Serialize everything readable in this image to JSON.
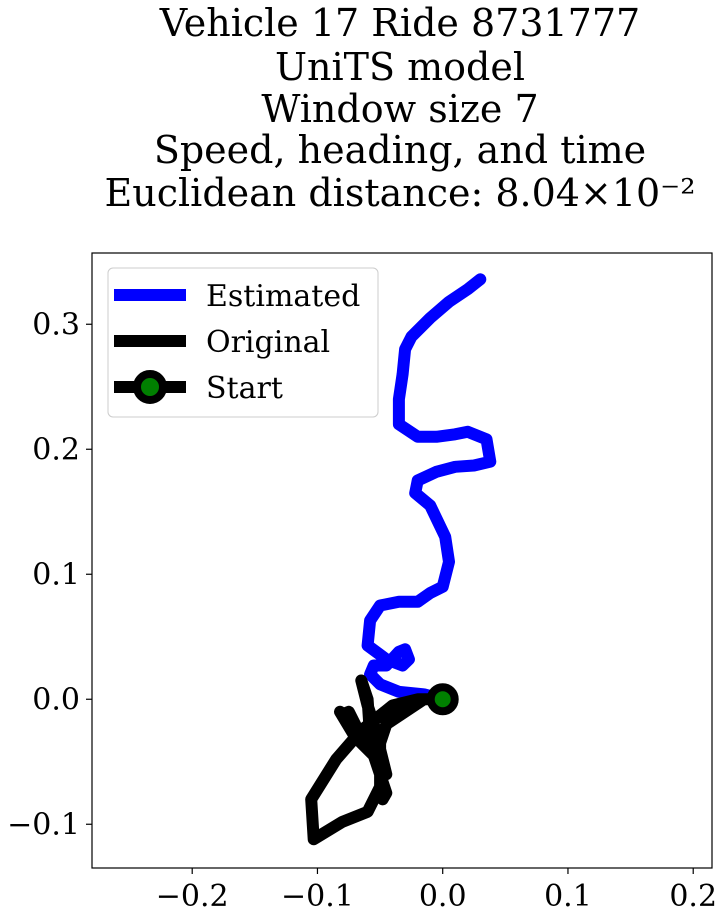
{
  "chart_data": {
    "type": "line",
    "title_lines": [
      "Vehicle 17 Ride 8731777",
      "UniTS model",
      "Window size 7",
      "Speed, heading, and time",
      "Euclidean distance: 8.04×10⁻²"
    ],
    "xlim": [
      -0.28,
      0.215
    ],
    "ylim": [
      -0.135,
      0.357
    ],
    "xticks": [
      -0.2,
      -0.1,
      0.0,
      0.1,
      0.2
    ],
    "xtick_labels": [
      "−0.2",
      "−0.1",
      "0.0",
      "0.1",
      "0.2"
    ],
    "yticks": [
      -0.1,
      0.0,
      0.1,
      0.2,
      0.3
    ],
    "ytick_labels": [
      "−0.1",
      "0.0",
      "0.1",
      "0.2",
      "0.3"
    ],
    "grid": false,
    "legend_position": "top-left",
    "legend": [
      "Estimated",
      "Original",
      "Start"
    ],
    "series": [
      {
        "name": "Estimated",
        "color": "#0000ff",
        "points": [
          [
            0.0,
            0.0
          ],
          [
            -0.015,
            0.004
          ],
          [
            -0.035,
            0.006
          ],
          [
            -0.05,
            0.012
          ],
          [
            -0.058,
            0.02
          ],
          [
            -0.055,
            0.027
          ],
          [
            -0.045,
            0.027
          ],
          [
            -0.035,
            0.038
          ],
          [
            -0.03,
            0.04
          ],
          [
            -0.027,
            0.032
          ],
          [
            -0.032,
            0.027
          ],
          [
            -0.045,
            0.032
          ],
          [
            -0.06,
            0.043
          ],
          [
            -0.058,
            0.063
          ],
          [
            -0.05,
            0.075
          ],
          [
            -0.035,
            0.078
          ],
          [
            -0.02,
            0.078
          ],
          [
            -0.01,
            0.085
          ],
          [
            0.0,
            0.09
          ],
          [
            0.005,
            0.11
          ],
          [
            0.002,
            0.13
          ],
          [
            -0.01,
            0.155
          ],
          [
            -0.022,
            0.165
          ],
          [
            -0.02,
            0.175
          ],
          [
            -0.005,
            0.182
          ],
          [
            0.01,
            0.186
          ],
          [
            0.025,
            0.187
          ],
          [
            0.038,
            0.19
          ],
          [
            0.035,
            0.208
          ],
          [
            0.02,
            0.214
          ],
          [
            0.01,
            0.212
          ],
          [
            -0.005,
            0.21
          ],
          [
            -0.02,
            0.21
          ],
          [
            -0.035,
            0.22
          ],
          [
            -0.035,
            0.24
          ],
          [
            -0.032,
            0.26
          ],
          [
            -0.03,
            0.28
          ],
          [
            -0.025,
            0.29
          ],
          [
            -0.01,
            0.305
          ],
          [
            0.005,
            0.318
          ],
          [
            0.02,
            0.328
          ],
          [
            0.03,
            0.336
          ]
        ]
      },
      {
        "name": "Original",
        "color": "#000000",
        "points": [
          [
            0.0,
            0.0
          ],
          [
            -0.02,
            0.0
          ],
          [
            -0.04,
            -0.005
          ],
          [
            -0.065,
            -0.025
          ],
          [
            -0.085,
            -0.048
          ],
          [
            -0.105,
            -0.08
          ],
          [
            -0.103,
            -0.112
          ],
          [
            -0.08,
            -0.098
          ],
          [
            -0.06,
            -0.09
          ],
          [
            -0.05,
            -0.07
          ],
          [
            -0.05,
            -0.04
          ],
          [
            -0.055,
            -0.02
          ],
          [
            -0.06,
            -0.005
          ],
          [
            -0.065,
            0.015
          ],
          [
            -0.06,
            0.0
          ],
          [
            -0.058,
            -0.03
          ],
          [
            -0.05,
            -0.045
          ],
          [
            -0.045,
            -0.06
          ],
          [
            -0.05,
            -0.04
          ],
          [
            -0.065,
            -0.03
          ],
          [
            -0.075,
            -0.01
          ],
          [
            -0.08,
            -0.012
          ],
          [
            -0.082,
            -0.01
          ],
          [
            -0.07,
            -0.03
          ],
          [
            -0.055,
            -0.045
          ],
          [
            -0.045,
            -0.075
          ],
          [
            -0.048,
            -0.08
          ],
          [
            -0.05,
            -0.06
          ],
          [
            -0.05,
            -0.035
          ],
          [
            -0.045,
            -0.02
          ],
          [
            -0.03,
            -0.01
          ],
          [
            -0.015,
            0.0
          ],
          [
            0.0,
            0.0
          ]
        ]
      }
    ],
    "start_point": [
      0.0,
      0.0
    ],
    "start_marker_color": "#008000"
  }
}
